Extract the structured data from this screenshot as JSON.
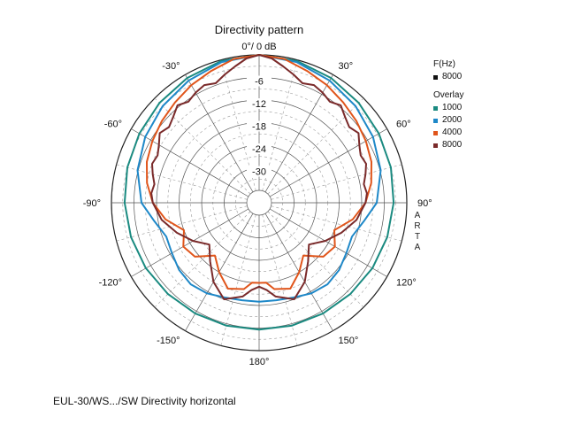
{
  "chart_data": {
    "type": "polar",
    "title": "Directivity pattern",
    "footer": "EUL-30/WS.../SW Directivity horizontal",
    "watermark": [
      "A",
      "R",
      "T",
      "A"
    ],
    "radial_axis": {
      "range_db": [
        -36,
        0
      ],
      "tick_labels": [
        "0°/ 0 dB",
        "-6",
        "-12",
        "-18",
        "-24",
        "-30"
      ],
      "ticks_db": [
        0,
        -6,
        -12,
        -18,
        -24,
        -30
      ]
    },
    "angle_labels": [
      {
        "angle": -30,
        "label": "-30°"
      },
      {
        "angle": 30,
        "label": "30°"
      },
      {
        "angle": -60,
        "label": "-60°"
      },
      {
        "angle": 60,
        "label": "60°"
      },
      {
        "angle": -90,
        "label": "-90°"
      },
      {
        "angle": 90,
        "label": "90°"
      },
      {
        "angle": -120,
        "label": "-120°"
      },
      {
        "angle": 120,
        "label": "120°"
      },
      {
        "angle": -150,
        "label": "-150°"
      },
      {
        "angle": 150,
        "label": "150°"
      },
      {
        "angle": 180,
        "label": "180°"
      }
    ],
    "grid": true,
    "legend": {
      "placement": "right",
      "header": "F(Hz)",
      "main": {
        "name": "8000",
        "color": "#111111"
      },
      "overlay_header": "Overlay",
      "overlay": [
        {
          "name": "1000",
          "color": "#1a8a80"
        },
        {
          "name": "2000",
          "color": "#1e88c8"
        },
        {
          "name": "4000",
          "color": "#e0551b"
        },
        {
          "name": "8000",
          "color": "#7a2a2a"
        }
      ]
    },
    "series": [
      {
        "name": "1000",
        "color": "#1a8a80",
        "angles": [
          0,
          15,
          30,
          45,
          60,
          75,
          90,
          105,
          120,
          135,
          150,
          165,
          180
        ],
        "db": [
          0,
          -0.3,
          -1,
          -1.8,
          -2.5,
          -3,
          -3.5,
          -4,
          -4.5,
          -5,
          -5.3,
          -5.5,
          -5.6
        ]
      },
      {
        "name": "2000",
        "color": "#1e88c8",
        "angles": [
          0,
          15,
          30,
          45,
          60,
          75,
          90,
          100,
          110,
          120,
          130,
          140,
          150,
          160,
          170,
          180
        ],
        "db": [
          0,
          -0.6,
          -1.8,
          -3,
          -4.3,
          -5.8,
          -8,
          -11,
          -13,
          -12.5,
          -11.5,
          -11,
          -11.5,
          -12.5,
          -13,
          -13
        ]
      },
      {
        "name": "4000",
        "color": "#e0551b",
        "angles": [
          0,
          10,
          20,
          30,
          40,
          50,
          60,
          70,
          80,
          90,
          100,
          110,
          120,
          130,
          140,
          150,
          160,
          170,
          175,
          180
        ],
        "db": [
          0,
          -0.5,
          -2,
          -3.2,
          -4.5,
          -5.5,
          -6.5,
          -7.5,
          -9,
          -11,
          -14,
          -18,
          -16,
          -17,
          -21,
          -18,
          -15,
          -16,
          -18,
          -18
        ]
      },
      {
        "name": "8000",
        "color": "#7a2a2a",
        "angles": [
          0,
          5,
          10,
          15,
          20,
          25,
          30,
          35,
          40,
          45,
          50,
          55,
          60,
          65,
          70,
          75,
          80,
          85,
          90,
          100,
          110,
          120,
          130,
          140,
          150,
          160,
          170,
          175,
          180
        ],
        "db": [
          0,
          -0.8,
          -2.5,
          -4,
          -5.5,
          -4.8,
          -5.5,
          -6.5,
          -5.5,
          -7,
          -8,
          -7,
          -8.5,
          -9.5,
          -9,
          -10,
          -11,
          -10.5,
          -11,
          -13,
          -16,
          -19,
          -22,
          -19,
          -15,
          -12,
          -14,
          -16,
          -17
        ]
      }
    ]
  }
}
